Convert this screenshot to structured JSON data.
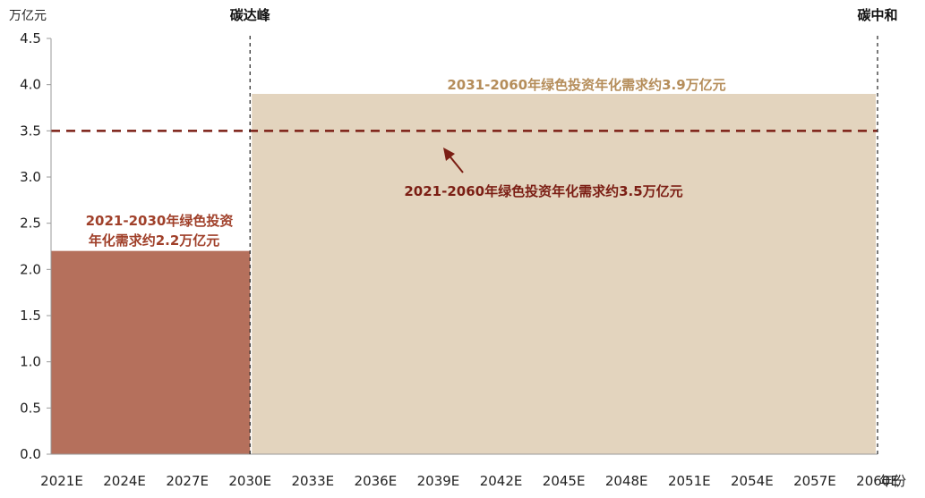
{
  "chart_data": {
    "type": "bar",
    "ylabel": "万亿元",
    "xlabel": "年份",
    "ylim": [
      0,
      4.5
    ],
    "yticks": [
      "0.0",
      "0.5",
      "1.0",
      "1.5",
      "2.0",
      "2.5",
      "3.0",
      "3.5",
      "4.0",
      "4.5"
    ],
    "categories": [
      "2021E",
      "2024E",
      "2027E",
      "2030E",
      "2033E",
      "2036E",
      "2039E",
      "2042E",
      "2045E",
      "2048E",
      "2051E",
      "2054E",
      "2057E",
      "2060E"
    ],
    "series": [
      {
        "start": "2021E",
        "end": "2030E",
        "value": 2.2,
        "color": "#b5705c"
      },
      {
        "start": "2030E",
        "end": "2060E",
        "value": 3.9,
        "color": "#e3d4be"
      }
    ],
    "reference_line": {
      "value": 3.5,
      "color": "#7b1e14"
    },
    "milestones": [
      {
        "at": "2030E",
        "label": "碳达峰"
      },
      {
        "at": "2060E",
        "label": "碳中和"
      }
    ],
    "annotations": {
      "period1_line1": "2021-2030年绿色投资",
      "period1_line2": "年化需求约2.2万亿元",
      "period2": "2031-2060年绿色投资年化需求约3.9万亿元",
      "overall": "2021-2060年绿色投资年化需求约3.5万亿元"
    },
    "colors": {
      "period1_text": "#a0402a",
      "period2_text": "#b58d5a",
      "overall_text": "#7b1e14"
    }
  }
}
